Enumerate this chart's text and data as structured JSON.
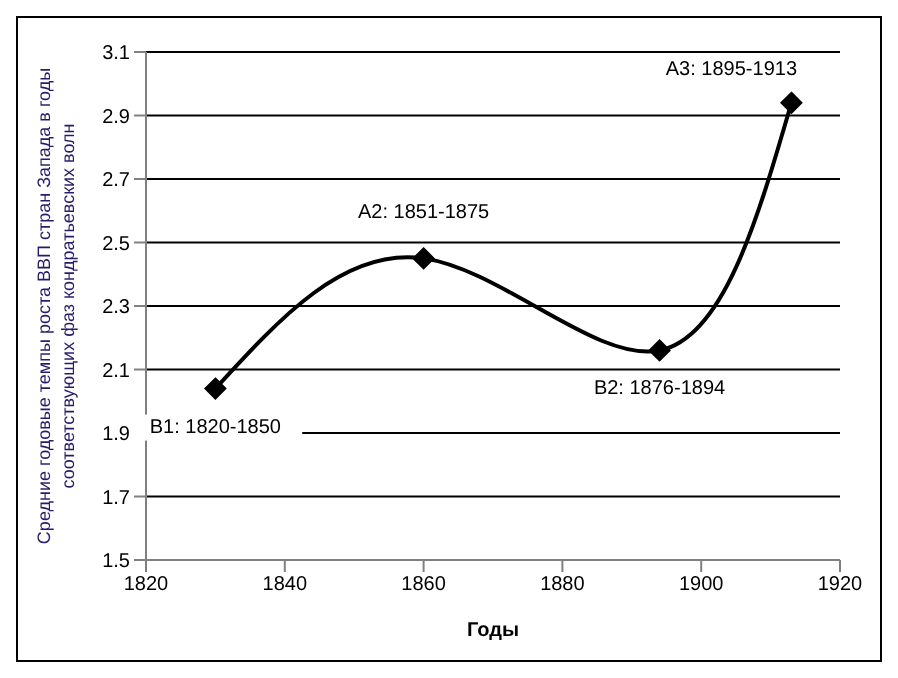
{
  "chart_data": {
    "type": "line",
    "xlabel": "Годы",
    "ylabel": "Средние годовые темпы роста ВВП стран Запада в годы соответствующих фаз кондратьевских волн",
    "x": [
      1830,
      1860,
      1894,
      1913
    ],
    "series": [
      {
        "color": "#000000",
        "values": [
          2.04,
          2.45,
          2.16,
          2.94
        ]
      }
    ],
    "xlim": [
      1820,
      1920
    ],
    "xticks": [
      1820,
      1840,
      1860,
      1880,
      1900,
      1920
    ],
    "ylim": [
      1.5,
      3.1
    ],
    "yticks": [
      1.5,
      1.7,
      1.9,
      2.1,
      2.3,
      2.5,
      2.7,
      2.9,
      3.1
    ],
    "grid": "y",
    "legend": false,
    "marker": "diamond",
    "line_style": "solid",
    "annotations": [
      {
        "text": "B1: 1820-1850",
        "x": 1830,
        "y": 2.04
      },
      {
        "text": "A2: 1851-1875",
        "x": 1860,
        "y": 2.45
      },
      {
        "text": "B2: 1876-1894",
        "x": 1894,
        "y": 2.16
      },
      {
        "text": "A3: 1895-1913",
        "x": 1913,
        "y": 2.94
      }
    ]
  }
}
